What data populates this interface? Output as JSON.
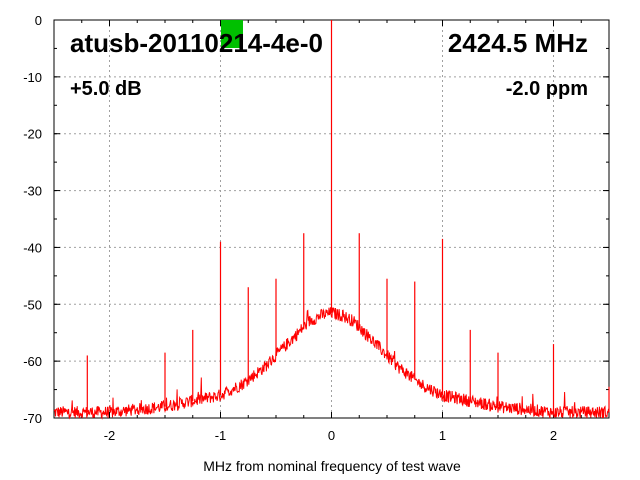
{
  "chart_data": {
    "type": "line",
    "xlabel": "MHz from nominal frequency of test wave",
    "ylabel": "",
    "xlim": [
      -2.5,
      2.5
    ],
    "ylim": [
      -70,
      0
    ],
    "x_ticks": [
      -2,
      -1,
      0,
      1,
      2
    ],
    "y_ticks": [
      0,
      -10,
      -20,
      -30,
      -40,
      -50,
      -60,
      -70
    ],
    "grid": true,
    "series_color": "#ff0000",
    "marker_color": "#00c000",
    "annotations": {
      "device": "atusb-20110214-4e-0",
      "frequency": "2424.5 MHz",
      "gain": "+5.0 dB",
      "offset": "-2.0 ppm"
    },
    "noise_floor_envelope": {
      "x": [
        -2.5,
        -2.0,
        -1.5,
        -1.0,
        -0.8,
        -0.6,
        -0.4,
        -0.2,
        -0.1,
        0.0,
        0.1,
        0.2,
        0.4,
        0.6,
        0.8,
        1.0,
        1.5,
        2.0,
        2.5
      ],
      "y": [
        -69,
        -69,
        -68,
        -66,
        -64,
        -61,
        -57,
        -53,
        -52,
        -51.5,
        -52,
        -53,
        -57,
        -61,
        -64,
        -66,
        -68,
        -69,
        -69
      ]
    },
    "spurs": [
      {
        "x": 0.0,
        "y": 0
      },
      {
        "x": -2.2,
        "y": -59
      },
      {
        "x": -1.5,
        "y": -58.5
      },
      {
        "x": -1.25,
        "y": -54.5
      },
      {
        "x": -1.0,
        "y": -39
      },
      {
        "x": -0.75,
        "y": -47
      },
      {
        "x": -0.5,
        "y": -45.5
      },
      {
        "x": -0.25,
        "y": -37.5
      },
      {
        "x": 0.25,
        "y": -37.5
      },
      {
        "x": 0.5,
        "y": -45.5
      },
      {
        "x": 0.75,
        "y": -46
      },
      {
        "x": 1.0,
        "y": -38.5
      },
      {
        "x": 1.25,
        "y": -54.5
      },
      {
        "x": 1.5,
        "y": -58.5
      },
      {
        "x": 2.0,
        "y": -57
      },
      {
        "x": 2.5,
        "y": -64.5
      }
    ]
  }
}
